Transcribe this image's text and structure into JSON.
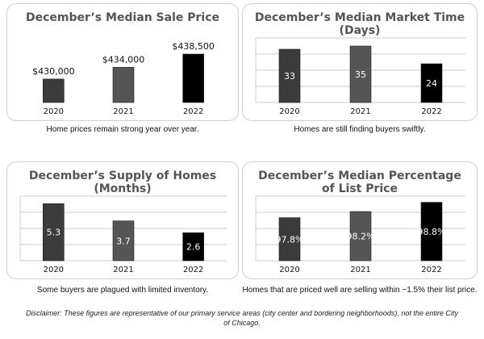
{
  "chart_data": [
    {
      "type": "bar",
      "title": "December’s Median Sale Price",
      "categories": [
        "2020",
        "2021",
        "2022"
      ],
      "values": [
        430000,
        434000,
        438500
      ],
      "data_labels": [
        "$430,000",
        "$434,000",
        "$438,500"
      ],
      "label_position": "above",
      "gridlines": false,
      "ylim": [
        422000,
        444000
      ],
      "colors": [
        "#3b3b3b",
        "#555555",
        "#000000"
      ]
    },
    {
      "type": "bar",
      "title": "December’s Median Market Time\n(Days)",
      "categories": [
        "2020",
        "2021",
        "2022"
      ],
      "values": [
        33,
        35,
        24
      ],
      "data_labels": [
        "33",
        "35",
        "24"
      ],
      "label_position": "inside",
      "gridlines": true,
      "ylim": [
        0,
        40
      ],
      "colors": [
        "#3b3b3b",
        "#555555",
        "#000000"
      ]
    },
    {
      "type": "bar",
      "title": "December’s Supply of Homes\n(Months)",
      "categories": [
        "2020",
        "2021",
        "2022"
      ],
      "values": [
        5.3,
        3.7,
        2.6
      ],
      "data_labels": [
        "5.3",
        "3.7",
        "2.6"
      ],
      "label_position": "inside",
      "gridlines": true,
      "ylim": [
        0,
        6
      ],
      "colors": [
        "#3b3b3b",
        "#555555",
        "#000000"
      ]
    },
    {
      "type": "bar",
      "title": "December’s Median Percentage\nof List Price",
      "categories": [
        "2020",
        "2021",
        "2022"
      ],
      "values": [
        97.8,
        98.2,
        98.8
      ],
      "data_labels": [
        "97.8%",
        "98.2%",
        "98.8%"
      ],
      "label_position": "inside",
      "gridlines": true,
      "ylim": [
        95,
        99.2
      ],
      "colors": [
        "#3b3b3b",
        "#555555",
        "#000000"
      ]
    }
  ],
  "captions": [
    "Home prices remain strong year over year.",
    "Homes are still finding buyers swiftly.",
    "Some buyers are plagued with limited inventory.",
    "Homes that are priced well are selling within ~1.5% their list price."
  ],
  "disclaimer": "Disclaimer: These figures are representative of our primary service areas (city center and bordering neighborhoods), not the entire City of Chicago."
}
